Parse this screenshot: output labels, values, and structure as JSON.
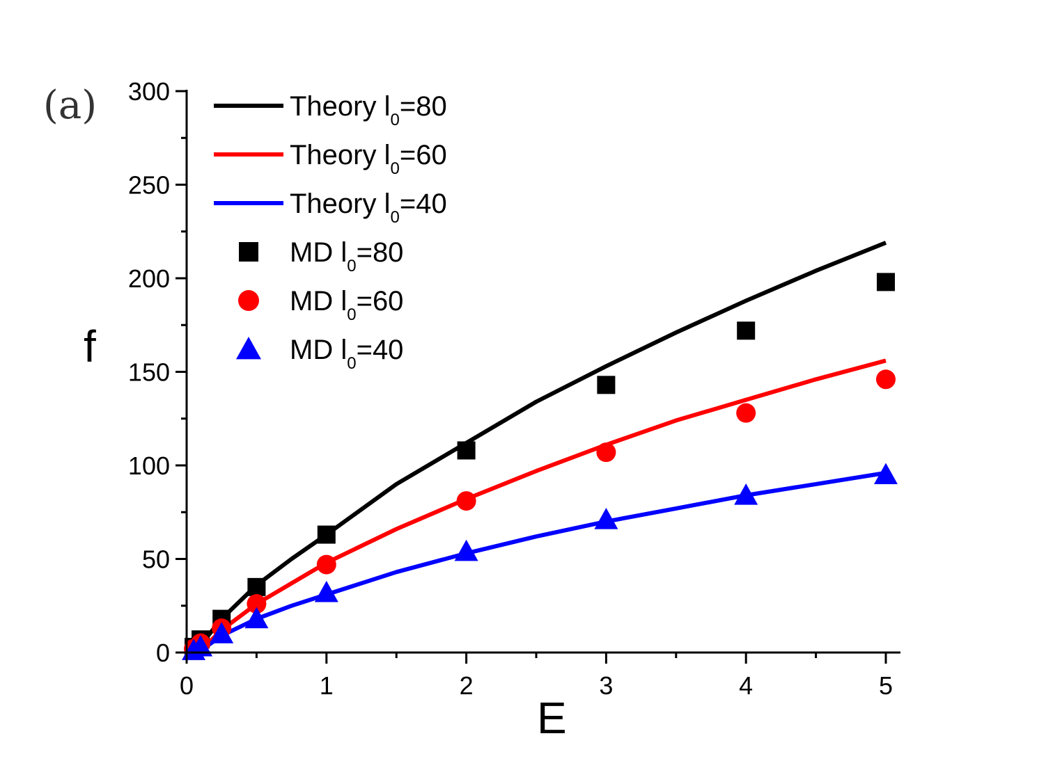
{
  "chart_data": {
    "type": "line",
    "panel_label": "(a)",
    "xlabel": "E",
    "ylabel": "f",
    "xlim": [
      0,
      5.1
    ],
    "ylim": [
      0,
      300
    ],
    "x_ticks": [
      0,
      1,
      2,
      3,
      4,
      5
    ],
    "x_tick_labels": [
      "0",
      "1",
      "2",
      "3",
      "4",
      "5"
    ],
    "y_ticks": [
      0,
      50,
      100,
      150,
      200,
      250,
      300
    ],
    "y_tick_labels": [
      "0",
      "50",
      "100",
      "150",
      "200",
      "250",
      "300"
    ],
    "legend_position": "top-left",
    "series": [
      {
        "name": "Theory l0=80",
        "kind": "line",
        "color": "#000000",
        "legend": {
          "prefix": "Theory l",
          "sub": "0",
          "suffix": "=80"
        },
        "x": [
          0.1,
          0.25,
          0.5,
          0.75,
          1,
          1.5,
          2,
          2.5,
          3,
          3.5,
          4,
          4.5,
          5
        ],
        "y": [
          4,
          18,
          36,
          50,
          63,
          90,
          112,
          134,
          153,
          171,
          188,
          204,
          219
        ]
      },
      {
        "name": "Theory l0=60",
        "kind": "line",
        "color": "#ff0000",
        "legend": {
          "prefix": "Theory l",
          "sub": "0",
          "suffix": "=60"
        },
        "x": [
          0.1,
          0.25,
          0.5,
          0.75,
          1,
          1.5,
          2,
          2.5,
          3,
          3.5,
          4,
          4.5,
          5
        ],
        "y": [
          1,
          12,
          26,
          37,
          48,
          66,
          82,
          97,
          111,
          124,
          135,
          146,
          156
        ]
      },
      {
        "name": "Theory l0=40",
        "kind": "line",
        "color": "#0000ff",
        "legend": {
          "prefix": "Theory l",
          "sub": "0",
          "suffix": "=40"
        },
        "x": [
          0.1,
          0.25,
          0.5,
          0.75,
          1,
          1.5,
          2,
          2.5,
          3,
          3.5,
          4,
          4.5,
          5
        ],
        "y": [
          1,
          9,
          18,
          25,
          31,
          43,
          53,
          62,
          70,
          77,
          84,
          90,
          96
        ]
      },
      {
        "name": "MD l0=80",
        "kind": "scatter",
        "marker": "square",
        "color": "#000000",
        "legend": {
          "prefix": "MD l",
          "sub": "0",
          "suffix": "=80"
        },
        "x": [
          0.05,
          0.1,
          0.25,
          0.5,
          1,
          2,
          3,
          4,
          5
        ],
        "y": [
          3,
          7,
          18,
          35,
          63,
          108,
          143,
          172,
          198
        ]
      },
      {
        "name": "MD l0=60",
        "kind": "scatter",
        "marker": "circle",
        "color": "#ff0000",
        "legend": {
          "prefix": "MD l",
          "sub": "0",
          "suffix": "=60"
        },
        "x": [
          0.05,
          0.1,
          0.25,
          0.5,
          1,
          2,
          3,
          4,
          5
        ],
        "y": [
          2,
          5,
          13,
          26,
          47,
          81,
          107,
          128,
          146
        ]
      },
      {
        "name": "MD l0=40",
        "kind": "scatter",
        "marker": "triangle",
        "color": "#0000ff",
        "legend": {
          "prefix": "MD l",
          "sub": "0",
          "suffix": "=40"
        },
        "x": [
          0.05,
          0.1,
          0.25,
          0.5,
          1,
          2,
          3,
          4,
          5
        ],
        "y": [
          1,
          3,
          10,
          18,
          32,
          54,
          71,
          84,
          95
        ]
      }
    ]
  }
}
